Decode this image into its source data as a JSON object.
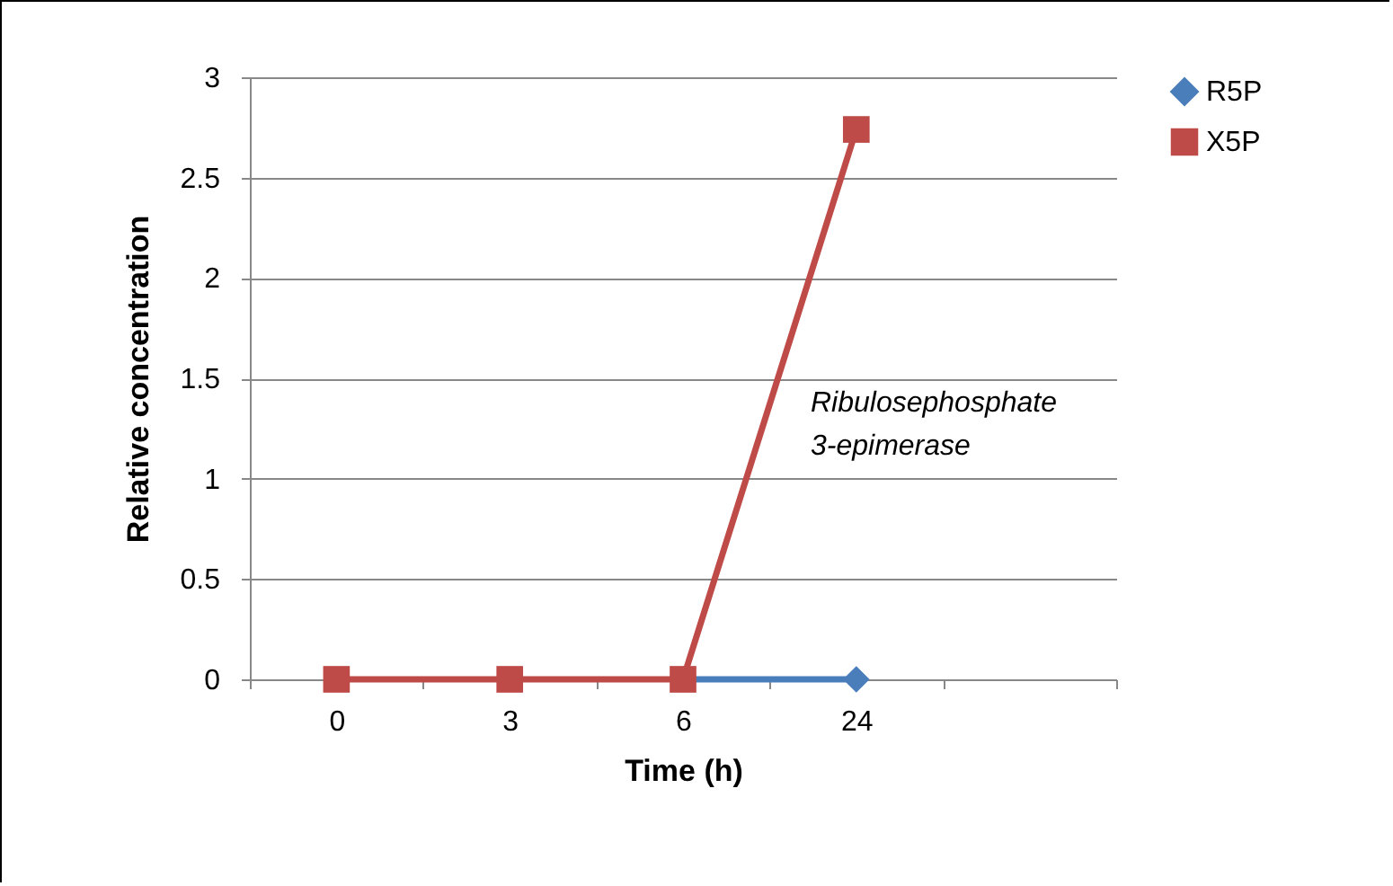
{
  "chart_data": {
    "type": "line",
    "xlabel": "Time (h)",
    "ylabel": "Relative concentration",
    "categories": [
      "0",
      "3",
      "6",
      "24",
      null
    ],
    "series": [
      {
        "name": "R5P",
        "color": "#4a7ebb",
        "marker": "diamond",
        "values": [
          null,
          null,
          0,
          0,
          null
        ]
      },
      {
        "name": "X5P",
        "color": "#be4b48",
        "marker": "square",
        "values": [
          0,
          0,
          0,
          2.74,
          null
        ]
      }
    ],
    "ylim": [
      0,
      3
    ],
    "yticks": [
      0,
      0.5,
      1,
      1.5,
      2,
      2.5,
      3
    ],
    "grid": "y",
    "legend": "right",
    "annotations": [
      "Ribulosephosphate 3-epimerase"
    ]
  }
}
